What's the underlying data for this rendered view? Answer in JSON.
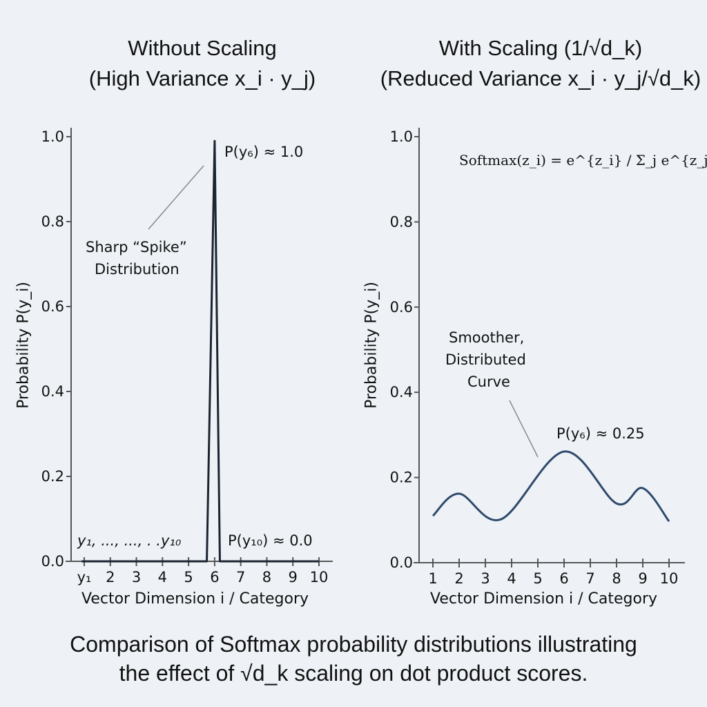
{
  "chart_data": [
    {
      "type": "line",
      "title": "Without Scaling",
      "subtitle": "(High Variance x_i · y_j)",
      "xlabel": "Vector Dimension i / Category",
      "ylabel": "Probability P(y_i)",
      "xlim": [
        1,
        10
      ],
      "ylim": [
        0,
        1.0
      ],
      "x_tick_labels": [
        "y₁",
        "2",
        "3",
        "4",
        "5",
        "6",
        "7",
        "8",
        "9",
        "10"
      ],
      "y_tick_labels": [
        "0.0",
        "0.2",
        "0.4",
        "0.6",
        "0.8",
        "1.0"
      ],
      "x": [
        0.9,
        5.7,
        6.0,
        6.2,
        10.0
      ],
      "y": [
        0.0,
        0.0,
        0.99,
        0.0,
        0.0
      ],
      "color": "#1b2431",
      "grid": false,
      "annotations": {
        "peak": "P(y₆) ≈ 1.0",
        "spike_line1": "Sharp “Spike”",
        "spike_line2": "Distribution",
        "range": "y₁, ..., ..., . .y₁₀",
        "tail": "P(y₁₀) ≈ 0.0"
      }
    },
    {
      "type": "line",
      "title": "With Scaling (1/√d_k)",
      "subtitle": "(Reduced Variance x_i · y_j/√d_k)",
      "xlabel": "Vector Dimension i / Category",
      "ylabel": "Probability P(y_i)",
      "xlim": [
        1,
        10
      ],
      "ylim": [
        0,
        1.0
      ],
      "x_tick_labels": [
        "1",
        "2",
        "3",
        "4",
        "5",
        "6",
        "7",
        "8",
        "9",
        "10"
      ],
      "y_tick_labels": [
        "0.0",
        "0.2",
        "0.4",
        "0.6",
        "0.8",
        "1.0"
      ],
      "x": [
        1,
        2,
        3.6,
        6,
        8,
        9,
        10
      ],
      "y": [
        0.11,
        0.162,
        0.102,
        0.261,
        0.139,
        0.175,
        0.097
      ],
      "color": "#2e4a6b",
      "grid": false,
      "annotations": {
        "formula": "Softmax(z_i) = e^{z_i} / Σ_j e^{z_j}",
        "smooth_line1": "Smoother,",
        "smooth_line2": "Distributed",
        "smooth_line3": "Curve",
        "peak": "P(y₆) ≈ 0.25"
      }
    }
  ],
  "caption": {
    "line1": "Comparison of Softmax probability distributions illustrating",
    "line2": "the effect of √d_k scaling on dot product scores."
  }
}
